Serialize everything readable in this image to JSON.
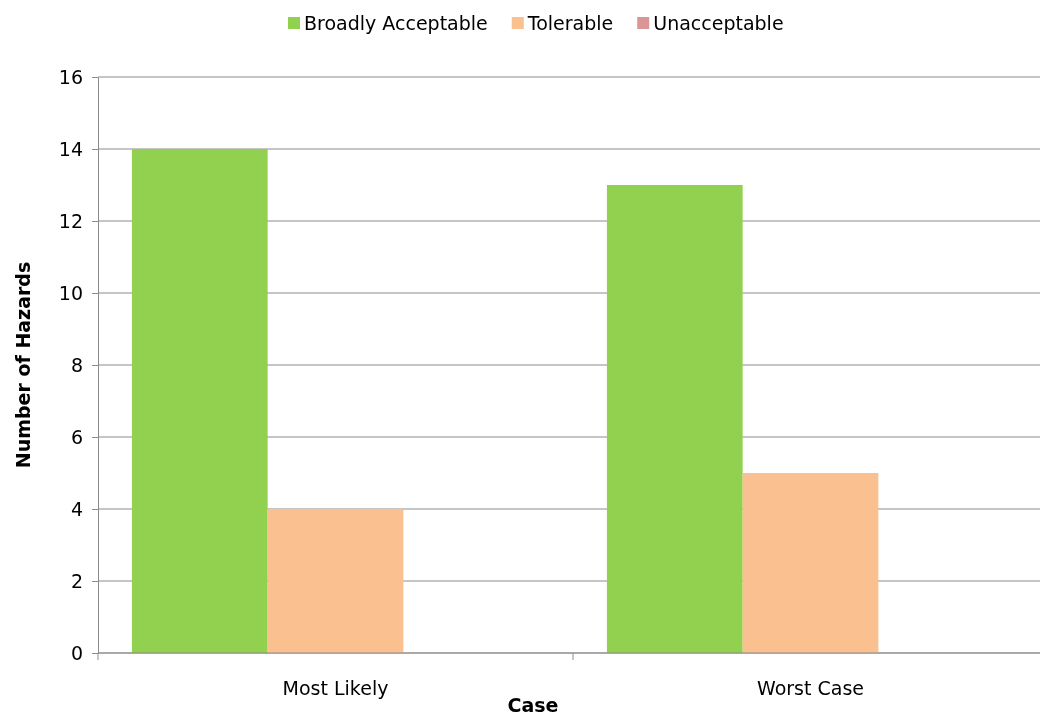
{
  "chart_data": {
    "type": "bar",
    "xlabel": "Case",
    "ylabel": "Number of Hazards",
    "categories": [
      "Most Likely",
      "Worst Case"
    ],
    "series": [
      {
        "name": "Broadly Acceptable",
        "color": "#92d050",
        "values": [
          14,
          13
        ]
      },
      {
        "name": "Tolerable",
        "color": "#fac090",
        "values": [
          4,
          5
        ]
      },
      {
        "name": "Unacceptable",
        "color": "#d99694",
        "values": [
          0,
          0
        ]
      }
    ],
    "ylim": [
      0,
      16
    ],
    "yticks": [
      0,
      2,
      4,
      6,
      8,
      10,
      12,
      14,
      16
    ],
    "grid": "y",
    "legend": "top"
  }
}
